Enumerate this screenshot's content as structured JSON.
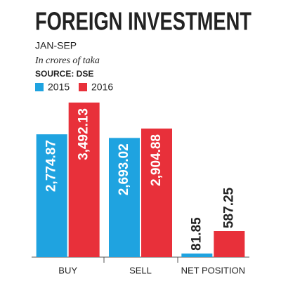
{
  "chart_data": {
    "type": "bar",
    "title": "FOREIGN INVESTMENT",
    "subtitle": "JAN-SEP",
    "note": "In crores of taka",
    "source": "SOURCE: DSE",
    "categories": [
      "BUY",
      "SELL",
      "NET POSITION"
    ],
    "series": [
      {
        "name": "2015",
        "color": "#1fa3e0",
        "values": [
          2774.87,
          2693.02,
          81.85
        ],
        "value_labels": [
          "2,774.87",
          "2,693.02",
          "81.85"
        ]
      },
      {
        "name": "2016",
        "color": "#e8303a",
        "values": [
          3492.13,
          2904.88,
          587.25
        ],
        "value_labels": [
          "3,492.13",
          "2,904.88",
          "587.25"
        ]
      }
    ]
  }
}
